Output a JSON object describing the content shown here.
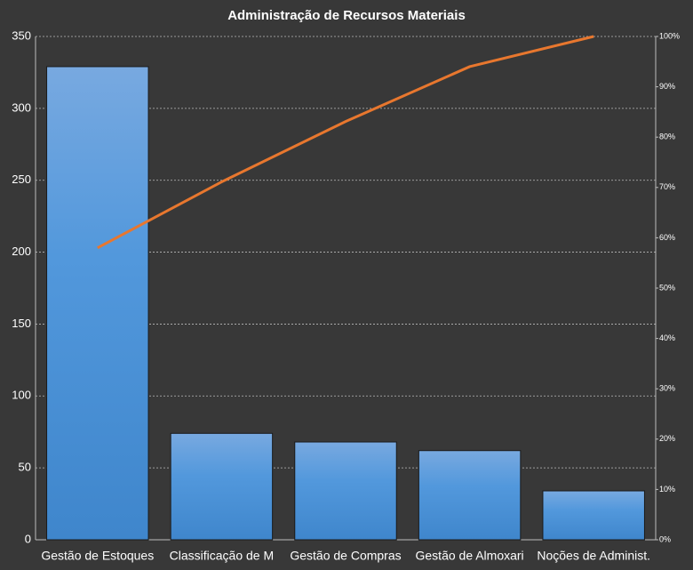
{
  "chart_data": {
    "type": "bar",
    "title": "Administração  de Recursos  Materiais",
    "categories": [
      "Gestão de Estoques",
      "Classificação de M",
      "Gestão de Compras",
      "Gestão de Almoxari",
      "Noções de Administ."
    ],
    "series": [
      {
        "color": "#4a90d9",
        "values": [
          329,
          74,
          68,
          62,
          34
        ]
      },
      {
        "color": "#e8772e",
        "type": "line",
        "axis": "y2",
        "values": [
          58.0,
          71.1,
          83.1,
          94.0,
          100
        ]
      }
    ],
    "ylim": [
      0,
      350
    ],
    "yticks": [
      0,
      50,
      100,
      150,
      200,
      250,
      300,
      350
    ],
    "y2lim": [
      0,
      100
    ],
    "y2ticks": [
      {
        "value": 0,
        "label": "0%"
      },
      {
        "value": 10,
        "label": "10%"
      },
      {
        "value": 20,
        "label": "20%"
      },
      {
        "value": 30,
        "label": "30%"
      },
      {
        "value": 40,
        "label": "40%"
      },
      {
        "value": 50,
        "label": "50%"
      },
      {
        "value": 60,
        "label": "60%"
      },
      {
        "value": 70,
        "label": "70%"
      },
      {
        "value": 80,
        "label": "80%"
      },
      {
        "value": 90,
        "label": "90%"
      },
      {
        "value": 100,
        "label": "100%"
      }
    ],
    "grid": true
  }
}
